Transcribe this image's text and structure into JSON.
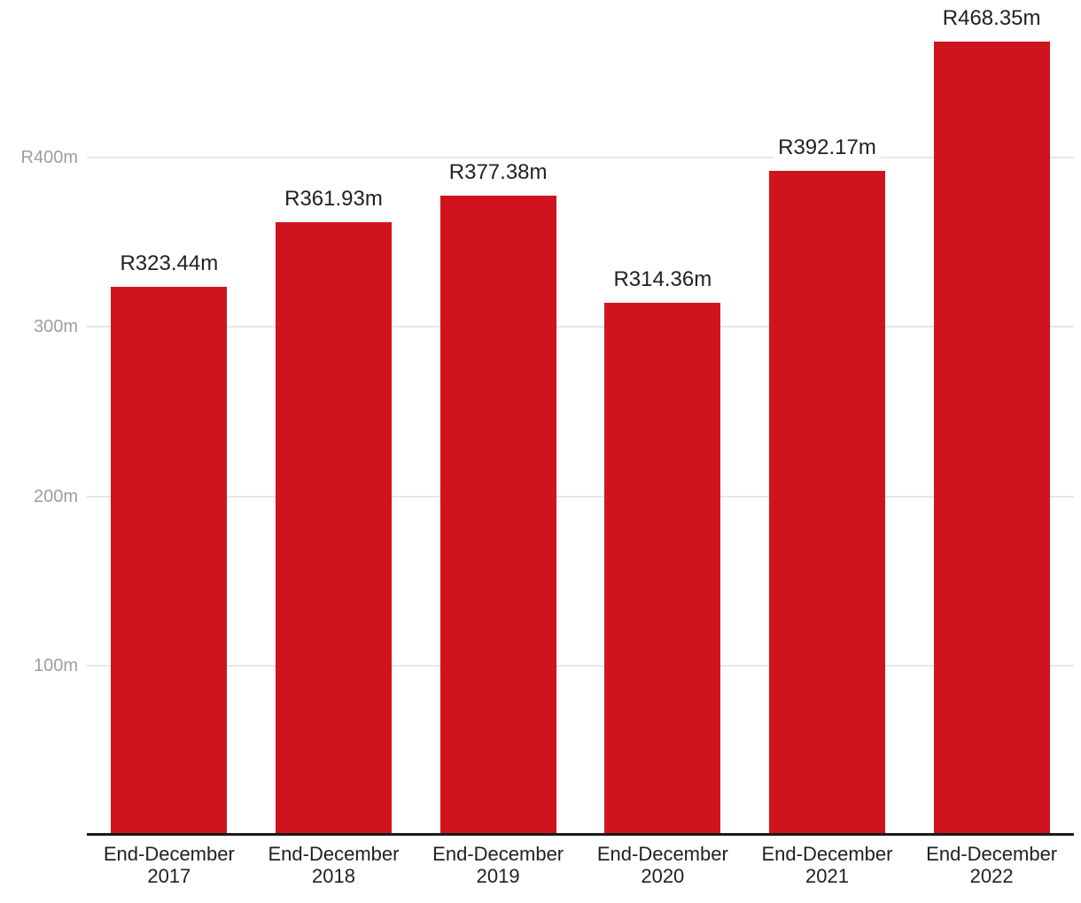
{
  "chart_data": {
    "type": "bar",
    "title": "",
    "categories": [
      "End-December 2017",
      "End-December 2018",
      "End-December 2019",
      "End-December 2020",
      "End-December 2021",
      "End-December 2022"
    ],
    "values": [
      323.44,
      361.93,
      377.38,
      314.36,
      392.17,
      468.35
    ],
    "bar_labels": [
      "R323.44m",
      "R361.93m",
      "R377.38m",
      "R314.36m",
      "R392.17m",
      "R468.35m"
    ],
    "y_ticks": [
      {
        "value": 400,
        "label": "R400m"
      },
      {
        "value": 300,
        "label": "300m"
      },
      {
        "value": 200,
        "label": "200m"
      },
      {
        "value": 100,
        "label": "100m"
      }
    ],
    "ylim": [
      0,
      493
    ],
    "xlabel": "",
    "ylabel": "",
    "grid": "horizontal",
    "legend": "none",
    "colors": {
      "bar": "#d0141d",
      "grid": "#e7e7e7",
      "axis": "#1a1a1a",
      "tick_label": "#9e9e9e",
      "value_label": "#212121",
      "category_label": "#212121",
      "background": "#ffffff"
    }
  }
}
